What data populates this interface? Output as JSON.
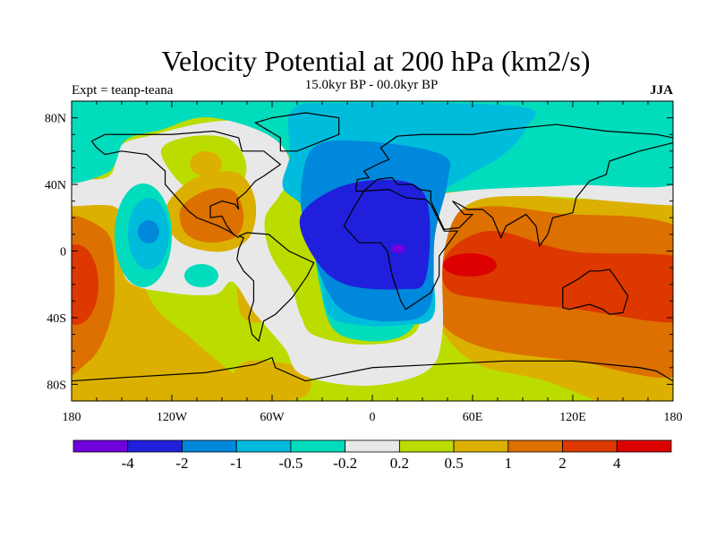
{
  "title": "Velocity Potential at 200 hPa (km2/s)",
  "subtitle": "15.0kyr BP - 00.0kyr BP",
  "left_label": "Expt = teanp-teana",
  "right_label": "JJA",
  "axes": {
    "lat_labels": [
      {
        "lat": 80,
        "label": "80N"
      },
      {
        "lat": 40,
        "label": "40N"
      },
      {
        "lat": 0,
        "label": "0"
      },
      {
        "lat": -40,
        "label": "40S"
      },
      {
        "lat": -80,
        "label": "80S"
      }
    ],
    "lon_labels": [
      {
        "lon": -180,
        "label": "180"
      },
      {
        "lon": -120,
        "label": "120W"
      },
      {
        "lon": -60,
        "label": "60W"
      },
      {
        "lon": 0,
        "label": "0"
      },
      {
        "lon": 60,
        "label": "60E"
      },
      {
        "lon": 120,
        "label": "120E"
      },
      {
        "lon": 180,
        "label": "180"
      }
    ],
    "lon_range": [
      -180,
      180
    ],
    "lat_range": [
      -90,
      90
    ]
  },
  "colorbar": {
    "colors": [
      "#7000dc",
      "#2020dc",
      "#0088dc",
      "#00bcdc",
      "#00dcbc",
      "#e8e8e8",
      "#bcdc00",
      "#dcb000",
      "#dc7000",
      "#dc3800",
      "#dc0000"
    ],
    "levels": [
      "-4",
      "-2",
      "-1",
      "-0.5",
      "-0.2",
      "0.2",
      "0.5",
      "1",
      "2",
      "4"
    ]
  },
  "chart_data": {
    "type": "heatmap",
    "title": "Velocity Potential at 200 hPa (km2/s)",
    "subtitle": "15.0kyr BP - 00.0kyr BP",
    "variable": "velocity potential difference",
    "units": "km2/s",
    "season": "JJA",
    "contour_levels": [
      -4,
      -2,
      -1,
      -0.5,
      -0.2,
      0.2,
      0.5,
      1,
      2,
      4
    ],
    "features": [
      {
        "region": "Africa / Indian Ocean",
        "sign": "negative",
        "min_bin": "< -4"
      },
      {
        "region": "Maritime Continent / Western Pacific",
        "sign": "positive",
        "max_bin": "> 4"
      },
      {
        "region": "Central Pacific",
        "sign": "positive",
        "max_bin": "2 to 4"
      },
      {
        "region": "Caribbean",
        "sign": "positive",
        "max_bin": "1 to 2"
      },
      {
        "region": "Eastern North Pacific",
        "sign": "negative",
        "min_bin": "-2 to -1"
      }
    ]
  }
}
